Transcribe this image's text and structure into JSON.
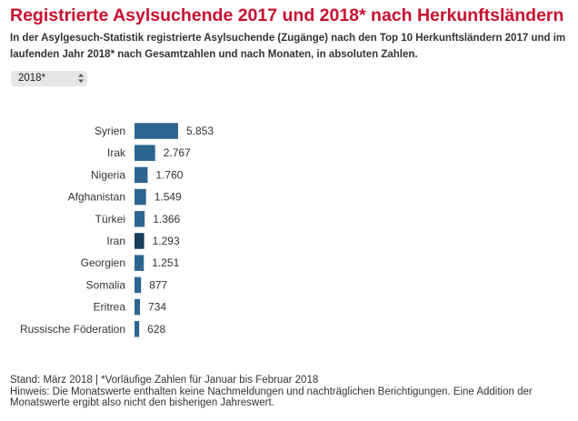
{
  "title": "Registrierte Asylsuchende 2017 und 2018* nach Herkunftsländern",
  "subtitle": "In der Asylgesuch-Statistik registrierte Asylsuchende (Zugänge) nach den Top 10 Herkunftsländern 2017 und im laufenden Jahr 2018* nach Gesamtzahlen und nach Monaten, in absoluten Zahlen.",
  "year_select": {
    "value": "2018*"
  },
  "chart_data": {
    "type": "bar",
    "orientation": "horizontal",
    "categories": [
      "Syrien",
      "Irak",
      "Nigeria",
      "Afghanistan",
      "Türkei",
      "Iran",
      "Georgien",
      "Somalia",
      "Eritrea",
      "Russische Föderation"
    ],
    "values": [
      5853,
      2767,
      1760,
      1549,
      1366,
      1293,
      1251,
      877,
      734,
      628
    ],
    "value_labels": [
      "5.853",
      "2.767",
      "1.760",
      "1.549",
      "1.366",
      "1.293",
      "1.251",
      "877",
      "734",
      "628"
    ],
    "highlighted_index": 5,
    "colors": {
      "bar": "#2d6590",
      "highlight": "#1a3d5e",
      "label": "#333333"
    }
  },
  "footer": {
    "stand": "Stand: März 2018 | *Vorläufige Zahlen für Januar bis Februar 2018",
    "hinweis": "Hinweis: Die Monatswerte enthalten keine Nachmeldungen und nachträglichen Berichtigungen. Eine Addition der Monatswerte ergibt also nicht den bisherigen Jahreswert."
  }
}
